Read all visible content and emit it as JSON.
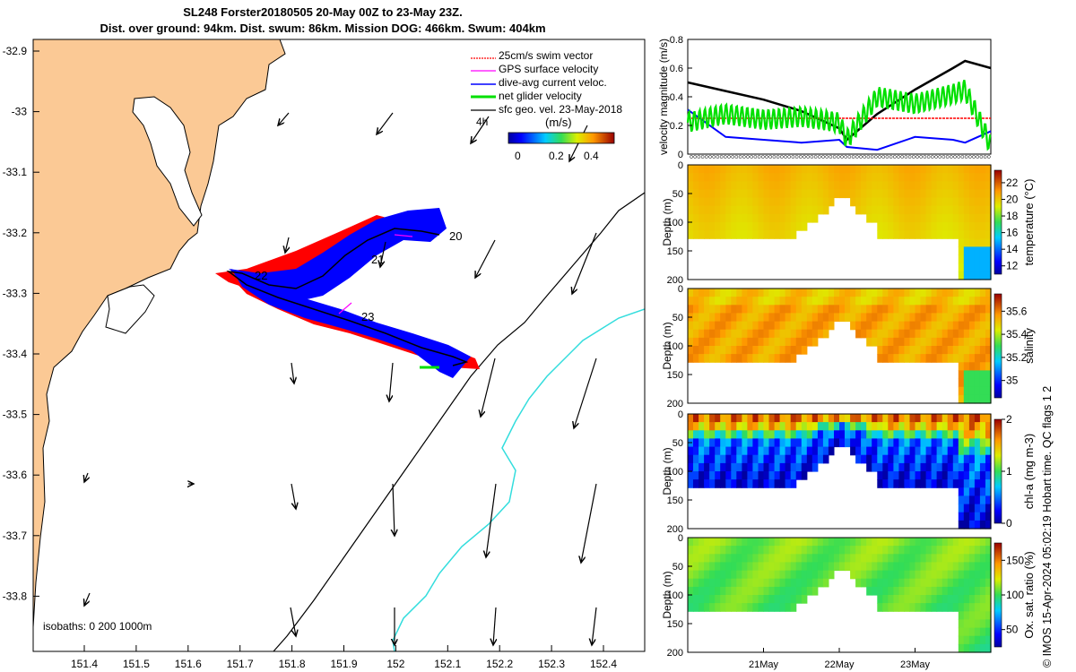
{
  "header": {
    "title_line1": "SL248 Forster20180505 20-May 00Z to 23-May 23Z.",
    "title_line2": "Dist. over ground: 94km. Dist. swum: 86km. Mission DOG: 466km. Swum: 404km"
  },
  "credit": "© IMOS 15-Apr-2024 05:02:19 Hobart time. QC flags 1  2",
  "colors": {
    "land": "#fbc995",
    "swim": "#ff0000",
    "gps": "#ff00ff",
    "current": "#0000ff",
    "net": "#00e000",
    "isobath_200": "#000000",
    "isobath_1000": "#33dddd"
  },
  "map": {
    "x_ticks": [
      "151.4",
      "151.5",
      "151.6",
      "151.7",
      "151.8",
      "151.9",
      "152",
      "152.1",
      "152.2",
      "152.3",
      "152.4"
    ],
    "y_ticks": [
      "-32.9",
      "-33",
      "-33.1",
      "-33.2",
      "-33.3",
      "-33.4",
      "-33.5",
      "-33.6",
      "-33.7",
      "-33.8"
    ],
    "legend": [
      "25cm/s swim vector",
      "GPS surface velocity",
      "dive-avg current veloc.",
      "net glider velocity",
      "sfc geo. vel. 23-May-2018"
    ],
    "legend_4h": "4h",
    "colorbar_unit": "(m/s)",
    "colorbar_ticks": [
      "0",
      "0.2",
      "0.4"
    ],
    "day_labels": [
      "20",
      "21",
      "22",
      "23"
    ],
    "isobaths_label": "isobaths: 0   200  1000m"
  },
  "chart_data": [
    {
      "type": "line",
      "title": "",
      "ylabel": "velocity magnitude (m/s)",
      "xlim": [
        0,
        4
      ],
      "ylim": [
        0,
        0.8
      ],
      "y_ticks": [
        "0",
        "0.2",
        "0.4",
        "0.6",
        "0.8"
      ],
      "x": [
        0,
        0.5,
        1,
        1.5,
        2,
        2.1,
        2.5,
        3,
        3.5,
        3.66,
        4
      ],
      "series": [
        {
          "name": "sfc geo. vel.",
          "color": "#000000",
          "values": [
            0.5,
            0.44,
            0.38,
            0.3,
            0.18,
            0.1,
            0.28,
            0.45,
            0.6,
            0.65,
            0.6
          ]
        },
        {
          "name": "swim",
          "color": "#ff0000",
          "values": [
            0.25,
            0.25,
            0.25,
            0.25,
            0.25,
            0.25,
            0.25,
            0.25,
            0.25,
            0.25,
            0.25
          ]
        },
        {
          "name": "dive-avg current",
          "color": "#0000ff",
          "values": [
            0.31,
            0.12,
            0.1,
            0.08,
            0.1,
            0.05,
            0.03,
            0.12,
            0.1,
            0.08,
            0.16
          ]
        },
        {
          "name": "net glider",
          "color": "#00e000",
          "values": [
            0.22,
            0.28,
            0.24,
            0.26,
            0.22,
            0.1,
            0.4,
            0.35,
            0.42,
            0.45,
            0.06
          ]
        }
      ]
    },
    {
      "type": "heatmap",
      "variable": "temperature",
      "cbar_label": "temperature (°C)",
      "cbar_ticks": [
        "12",
        "14",
        "16",
        "18",
        "20",
        "22"
      ],
      "clim": [
        11,
        23.5
      ],
      "ylabel": "Depth (m)",
      "y_ticks": [
        "0",
        "50",
        "100",
        "150",
        "200"
      ],
      "ylim": [
        0,
        200
      ],
      "surface_value": 20.5,
      "deep_value": 19
    },
    {
      "type": "heatmap",
      "variable": "salinity",
      "cbar_label": "salinity",
      "cbar_ticks": [
        "35",
        "35.2",
        "35.4",
        "35.6"
      ],
      "clim": [
        34.85,
        35.75
      ],
      "ylabel": "Depth (m)",
      "y_ticks": [
        "0",
        "50",
        "100",
        "150",
        "200"
      ],
      "ylim": [
        0,
        200
      ],
      "surface_value": 35.55,
      "deep_value": 35.6
    },
    {
      "type": "heatmap",
      "variable": "chl-a",
      "cbar_label": "chl-a (mg m-3)",
      "cbar_ticks": [
        "0",
        "1",
        "2"
      ],
      "clim": [
        0,
        2
      ],
      "ylabel": "Depth (m)",
      "y_ticks": [
        "0",
        "50",
        "100",
        "150",
        "200"
      ],
      "ylim": [
        0,
        200
      ],
      "surface_value": 1.8,
      "deep_value": 0.2
    },
    {
      "type": "heatmap",
      "variable": "oxygen",
      "cbar_label": "Ox. sat. ratio (%)",
      "cbar_ticks": [
        "50",
        "100",
        "150"
      ],
      "clim": [
        25,
        175
      ],
      "ylabel": "Depth (m)",
      "y_ticks": [
        "0",
        "50",
        "100",
        "150",
        "200"
      ],
      "ylim": [
        0,
        200
      ],
      "surface_value": 110,
      "deep_value": 100,
      "x_ticks": [
        "21May",
        "22May",
        "23May"
      ],
      "x_tick_days": [
        1,
        2,
        3
      ]
    }
  ]
}
